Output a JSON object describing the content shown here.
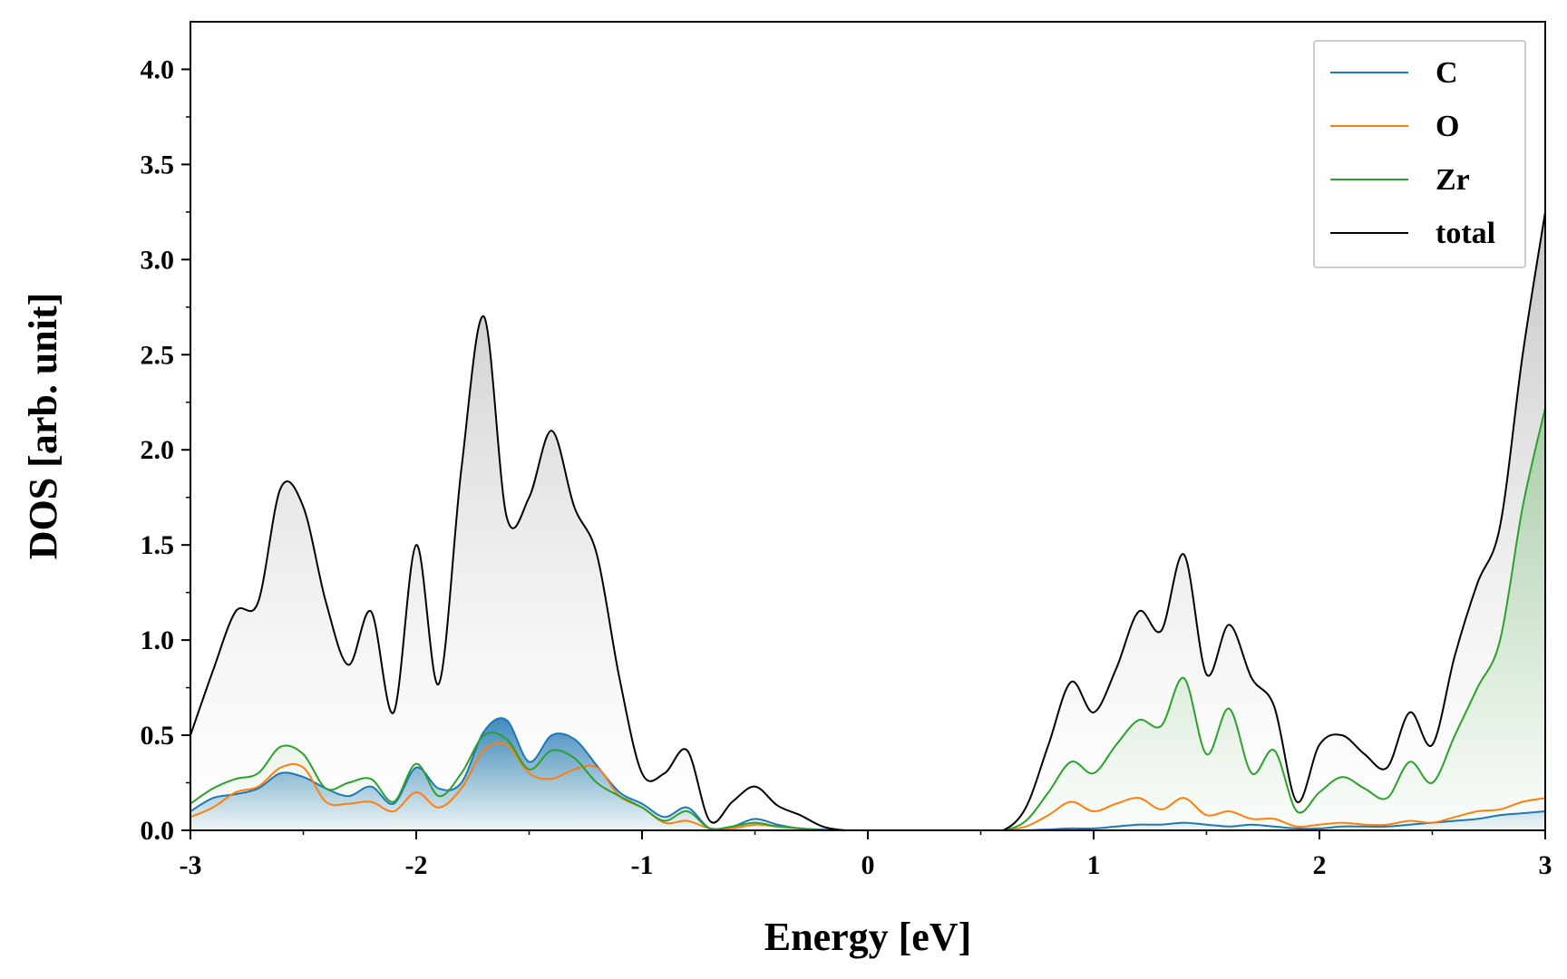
{
  "chart_data": {
    "type": "area",
    "xlabel": "Energy [eV]",
    "ylabel": "DOS [arb. unit]",
    "xlim": [
      -3,
      3
    ],
    "ylim": [
      0,
      4.25
    ],
    "xticks": [
      -3,
      -2,
      -1,
      0,
      1,
      2,
      3
    ],
    "xtick_labels": [
      "-3",
      "-2",
      "-1",
      "0",
      "1",
      "2",
      "3"
    ],
    "yticks": [
      0.0,
      0.5,
      1.0,
      1.5,
      2.0,
      2.5,
      3.0,
      3.5,
      4.0
    ],
    "ytick_labels": [
      "0.0",
      "0.5",
      "1.0",
      "1.5",
      "2.0",
      "2.5",
      "3.0",
      "3.5",
      "4.0"
    ],
    "grid": false,
    "legend_position": "top-right",
    "x": [
      -3.0,
      -2.9,
      -2.8,
      -2.7,
      -2.6,
      -2.5,
      -2.4,
      -2.3,
      -2.2,
      -2.1,
      -2.0,
      -1.9,
      -1.8,
      -1.7,
      -1.6,
      -1.5,
      -1.4,
      -1.3,
      -1.2,
      -1.1,
      -1.0,
      -0.9,
      -0.8,
      -0.7,
      -0.6,
      -0.5,
      -0.4,
      -0.3,
      -0.2,
      -0.1,
      0.0,
      0.1,
      0.2,
      0.3,
      0.4,
      0.5,
      0.6,
      0.7,
      0.8,
      0.9,
      1.0,
      1.1,
      1.2,
      1.3,
      1.4,
      1.5,
      1.6,
      1.7,
      1.8,
      1.9,
      2.0,
      2.1,
      2.2,
      2.3,
      2.4,
      2.5,
      2.6,
      2.7,
      2.8,
      2.9,
      3.0
    ],
    "series": [
      {
        "name": "C",
        "color": "#1f77b4",
        "values": [
          0.1,
          0.17,
          0.19,
          0.22,
          0.3,
          0.28,
          0.22,
          0.18,
          0.23,
          0.14,
          0.33,
          0.22,
          0.25,
          0.52,
          0.58,
          0.36,
          0.5,
          0.48,
          0.34,
          0.2,
          0.14,
          0.07,
          0.12,
          0.01,
          0.02,
          0.06,
          0.03,
          0.01,
          0.005,
          0.0,
          0.0,
          0.0,
          0.0,
          0.0,
          0.0,
          0.0,
          0.0,
          0.0,
          0.005,
          0.01,
          0.01,
          0.02,
          0.03,
          0.03,
          0.04,
          0.03,
          0.02,
          0.03,
          0.02,
          0.01,
          0.01,
          0.02,
          0.02,
          0.02,
          0.03,
          0.04,
          0.05,
          0.06,
          0.08,
          0.09,
          0.1
        ]
      },
      {
        "name": "O",
        "color": "#ff7f0e",
        "values": [
          0.07,
          0.12,
          0.2,
          0.23,
          0.33,
          0.33,
          0.15,
          0.14,
          0.15,
          0.1,
          0.2,
          0.12,
          0.22,
          0.42,
          0.45,
          0.3,
          0.27,
          0.32,
          0.33,
          0.18,
          0.12,
          0.04,
          0.05,
          0.01,
          0.01,
          0.03,
          0.02,
          0.01,
          0.0,
          0.0,
          0.0,
          0.0,
          0.0,
          0.0,
          0.0,
          0.0,
          0.0,
          0.02,
          0.08,
          0.15,
          0.1,
          0.14,
          0.17,
          0.11,
          0.17,
          0.08,
          0.1,
          0.06,
          0.06,
          0.02,
          0.03,
          0.04,
          0.03,
          0.03,
          0.05,
          0.04,
          0.07,
          0.1,
          0.11,
          0.15,
          0.17
        ]
      },
      {
        "name": "Zr",
        "color": "#2ca02c",
        "values": [
          0.14,
          0.22,
          0.27,
          0.3,
          0.44,
          0.4,
          0.22,
          0.25,
          0.27,
          0.15,
          0.35,
          0.18,
          0.3,
          0.5,
          0.48,
          0.32,
          0.42,
          0.38,
          0.25,
          0.18,
          0.12,
          0.05,
          0.1,
          0.01,
          0.02,
          0.04,
          0.02,
          0.01,
          0.0,
          0.0,
          0.0,
          0.0,
          0.0,
          0.0,
          0.0,
          0.0,
          0.0,
          0.05,
          0.2,
          0.36,
          0.3,
          0.45,
          0.58,
          0.55,
          0.8,
          0.4,
          0.64,
          0.3,
          0.42,
          0.1,
          0.2,
          0.28,
          0.22,
          0.17,
          0.36,
          0.25,
          0.5,
          0.75,
          1.0,
          1.7,
          2.22
        ]
      },
      {
        "name": "total",
        "color": "#000000",
        "values": [
          0.5,
          0.84,
          1.15,
          1.2,
          1.8,
          1.7,
          1.2,
          0.87,
          1.15,
          0.62,
          1.5,
          0.77,
          1.9,
          2.7,
          1.65,
          1.75,
          2.1,
          1.7,
          1.45,
          0.8,
          0.3,
          0.3,
          0.42,
          0.05,
          0.15,
          0.23,
          0.13,
          0.08,
          0.02,
          0.0,
          0.0,
          0.0,
          0.0,
          0.0,
          0.0,
          0.0,
          0.0,
          0.12,
          0.45,
          0.78,
          0.62,
          0.85,
          1.15,
          1.05,
          1.45,
          0.82,
          1.08,
          0.8,
          0.65,
          0.15,
          0.45,
          0.5,
          0.4,
          0.33,
          0.62,
          0.45,
          0.92,
          1.3,
          1.6,
          2.5,
          3.25
        ]
      }
    ]
  }
}
